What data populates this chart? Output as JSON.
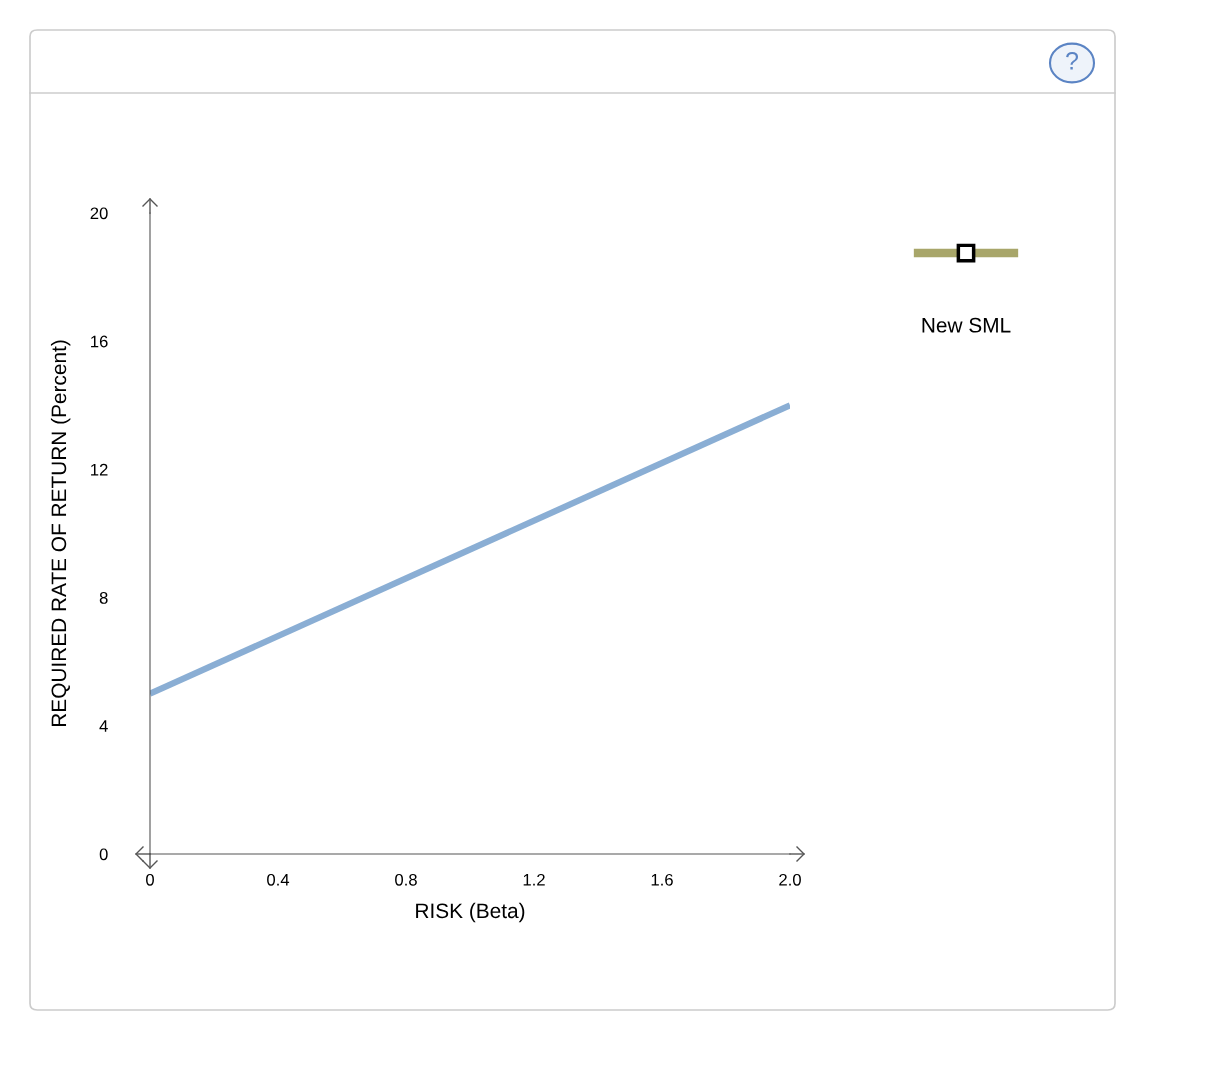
{
  "chart_data": {
    "type": "line",
    "xlabel": "RISK (Beta)",
    "ylabel": "REQUIRED RATE OF RETURN (Percent)",
    "x": [
      0,
      2.0
    ],
    "series": [
      {
        "color": "#8aaed4",
        "values": [
          5,
          14
        ]
      }
    ],
    "xlim": [
      0,
      2.0
    ],
    "ylim": [
      0,
      20
    ],
    "xticks": [
      0,
      0.4,
      0.8,
      1.2,
      {
        "value": 2.0,
        "label": "2.0"
      },
      1.6
    ],
    "yticks": [
      0,
      4,
      8,
      12,
      16,
      20
    ],
    "grid": false,
    "legend": false,
    "marker": "none",
    "line_style": "solid",
    "annotations": [
      "?",
      "New SML"
    ]
  }
}
